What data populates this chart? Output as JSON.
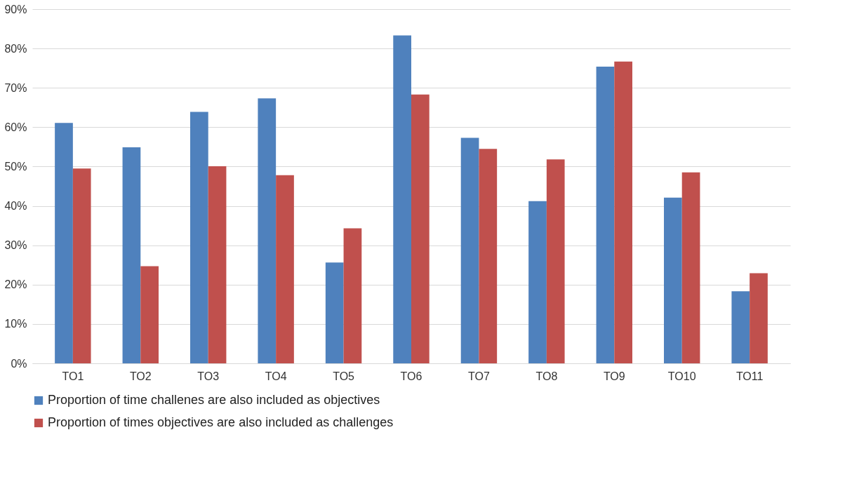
{
  "chart_data": {
    "type": "bar",
    "categories": [
      "TO1",
      "TO2",
      "TO3",
      "TO4",
      "TO5",
      "TO6",
      "TO7",
      "TO8",
      "TO9",
      "TO10",
      "TO11"
    ],
    "series": [
      {
        "name": "Proportion of time challenes are also included as objectives",
        "color": "#4f81bd",
        "values": [
          61.1,
          54.9,
          63.9,
          67.3,
          25.6,
          83.3,
          57.3,
          41.2,
          75.4,
          42.1,
          18.3
        ]
      },
      {
        "name": "Proportion of times objectives are  also included as challenges",
        "color": "#c0504d",
        "values": [
          49.5,
          24.7,
          50.1,
          47.8,
          34.3,
          68.3,
          54.5,
          51.8,
          76.7,
          48.5,
          22.9
        ]
      }
    ],
    "ylim": [
      0,
      90
    ],
    "yticks": [
      {
        "value": 0,
        "label": "0%"
      },
      {
        "value": 10,
        "label": "10%"
      },
      {
        "value": 20,
        "label": "20%"
      },
      {
        "value": 30,
        "label": "30%"
      },
      {
        "value": 40,
        "label": "40%"
      },
      {
        "value": 50,
        "label": "50%"
      },
      {
        "value": 60,
        "label": "60%"
      },
      {
        "value": 70,
        "label": "70%"
      },
      {
        "value": 80,
        "label": "80%"
      },
      {
        "value": 90,
        "label": "90%"
      }
    ],
    "grid": "y",
    "legend": "bottom"
  }
}
